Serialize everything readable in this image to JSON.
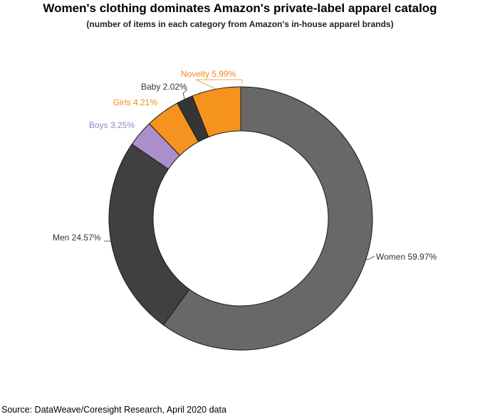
{
  "chart_data": {
    "type": "pie",
    "donut": true,
    "title": "Women's clothing dominates Amazon's private-label apparel catalog",
    "subtitle": "(number of items in each category from Amazon's in-house apparel brands)",
    "source": "Source: DataWeave/Coresight Research, April 2020 data",
    "slices": [
      {
        "name": "Women",
        "value": 59.97,
        "label": "Women 59.97%",
        "color": "#686868",
        "label_color": "#333333"
      },
      {
        "name": "Men",
        "value": 24.57,
        "label": "Men 24.57%",
        "color": "#404040",
        "label_color": "#333333"
      },
      {
        "name": "Boys",
        "value": 3.25,
        "label": "Boys 3.25%",
        "color": "#ab8fca",
        "label_color": "#9b7fc0"
      },
      {
        "name": "Girls",
        "value": 4.21,
        "label": "Girls 4.21%",
        "color": "#f6921e",
        "label_color": "#f08a1c"
      },
      {
        "name": "Baby",
        "value": 2.02,
        "label": "Baby 2.02%",
        "color": "#353535",
        "label_color": "#333333"
      },
      {
        "name": "Novelty",
        "value": 5.99,
        "label": "Novelty 5.99%",
        "color": "#f6921e",
        "label_color": "#f08a1c"
      }
    ]
  }
}
